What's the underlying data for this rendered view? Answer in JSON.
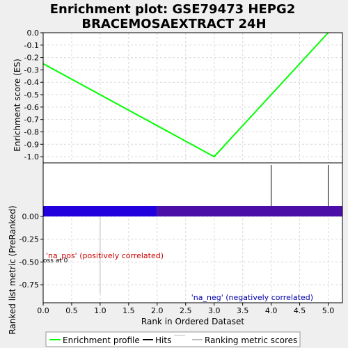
{
  "chart_data": {
    "type": "line",
    "title_line1": "Enrichment plot: GSE79473 HEPG2",
    "title_line2": "BRACEMOSAEXTRACT 24H",
    "xlabel": "Rank in Ordered Dataset",
    "xlim": [
      0,
      5.25
    ],
    "x_ticks": [
      "0.0",
      "0.5",
      "1.0",
      "1.5",
      "2.0",
      "2.5",
      "3.0",
      "3.5",
      "4.0",
      "4.5",
      "5.0"
    ],
    "enrichment": {
      "ylabel": "Enrichment score (ES)",
      "ylim": [
        -1.05,
        0.0
      ],
      "y_ticks": [
        "0.0",
        "-0.1",
        "-0.2",
        "-0.3",
        "-0.4",
        "-0.5",
        "-0.6",
        "-0.7",
        "-0.8",
        "-0.9",
        "-1.0"
      ],
      "series": [
        {
          "name": "Enrichment profile",
          "color": "#00ff00",
          "x": [
            0,
            3,
            5
          ],
          "y": [
            -0.25,
            -1.0,
            0.0
          ]
        }
      ]
    },
    "hits": {
      "name": "Hits",
      "x": [
        4,
        5
      ],
      "color": "#000000"
    },
    "ranking": {
      "ylabel": "Ranked list metric (PreRanked)",
      "ylim": [
        -1.0,
        0.2
      ],
      "y_ticks": [
        "0.00",
        "-0.25",
        "-0.50",
        "-0.75"
      ],
      "name": "Ranking metric scores",
      "bar_segments": [
        {
          "from": 0,
          "to": 2,
          "color": "#2200dd"
        },
        {
          "from": 2,
          "to": 5.25,
          "color": "#4b0fa8"
        }
      ],
      "annotations": {
        "pos": "'na_pos' (positively correlated)",
        "neg": "'na_neg' (negatively correlated)",
        "zero_cross": "oss at 0"
      }
    },
    "legend": {
      "placement": "bottom",
      "items": [
        {
          "label": "Enrichment profile",
          "color": "#00ff00"
        },
        {
          "label": "Hits",
          "color": "#000000"
        },
        {
          "label": "Ranking metric scores",
          "color": "#bbbbbb"
        }
      ]
    }
  }
}
